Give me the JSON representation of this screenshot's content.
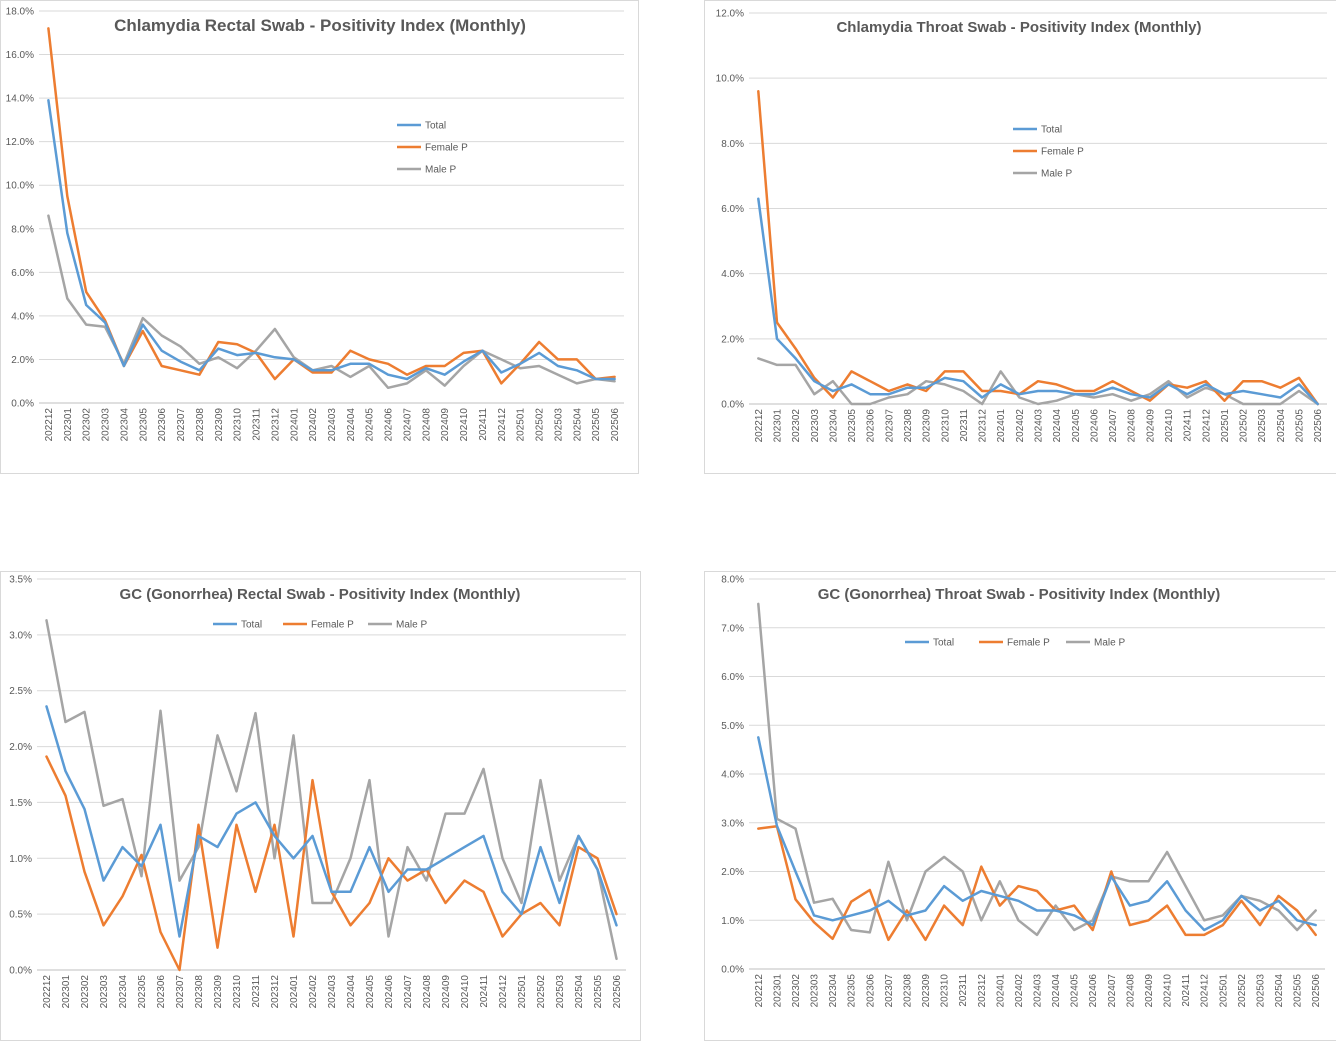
{
  "colors": {
    "Total": "#5b9bd5",
    "Female P": "#ed7d31",
    "Male P": "#a5a5a5"
  },
  "chart_data": [
    {
      "type": "line",
      "title": "Chlamydia   Rectal Swab - Positivity  Index (Monthly)",
      "ylim": [
        0,
        18
      ],
      "yticks": [
        "0.0%",
        "2.0%",
        "4.0%",
        "6.0%",
        "8.0%",
        "10.0%",
        "12.0%",
        "14.0%",
        "16.0%",
        "18.0%"
      ],
      "legend": "right",
      "x": [
        "202212",
        "202301",
        "202302",
        "202303",
        "202304",
        "202305",
        "202306",
        "202307",
        "202308",
        "202309",
        "202310",
        "202311",
        "202312",
        "202401",
        "202402",
        "202403",
        "202404",
        "202405",
        "202406",
        "202407",
        "202408",
        "202409",
        "202410",
        "202411",
        "202412",
        "202501",
        "202502",
        "202503",
        "202504",
        "202505",
        "202506"
      ],
      "series": [
        {
          "name": "Total",
          "values": [
            13.9,
            7.8,
            4.5,
            3.7,
            1.7,
            3.6,
            2.4,
            1.9,
            1.5,
            2.5,
            2.2,
            2.3,
            2.1,
            2.0,
            1.5,
            1.5,
            1.8,
            1.8,
            1.3,
            1.1,
            1.6,
            1.3,
            1.9,
            2.4,
            1.4,
            1.8,
            2.3,
            1.7,
            1.5,
            1.1,
            1.1
          ]
        },
        {
          "name": "Female P",
          "values": [
            17.2,
            9.5,
            5.1,
            3.8,
            1.7,
            3.3,
            1.7,
            1.5,
            1.3,
            2.8,
            2.7,
            2.3,
            1.1,
            2.0,
            1.4,
            1.4,
            2.4,
            2.0,
            1.8,
            1.3,
            1.7,
            1.7,
            2.3,
            2.4,
            0.9,
            1.8,
            2.8,
            2.0,
            2.0,
            1.1,
            1.2
          ]
        },
        {
          "name": "Male P",
          "values": [
            8.6,
            4.8,
            3.6,
            3.5,
            1.8,
            3.9,
            3.1,
            2.6,
            1.8,
            2.1,
            1.6,
            2.4,
            3.4,
            2.1,
            1.5,
            1.7,
            1.2,
            1.7,
            0.7,
            0.9,
            1.5,
            0.8,
            1.7,
            2.4,
            2.0,
            1.6,
            1.7,
            1.3,
            0.9,
            1.1,
            1.0
          ]
        }
      ]
    },
    {
      "type": "line",
      "title": "Chlamydia  Throat Swab - Positivity Index (Monthly)",
      "ylim": [
        0,
        12
      ],
      "yticks": [
        "0.0%",
        "2.0%",
        "4.0%",
        "6.0%",
        "8.0%",
        "10.0%",
        "12.0%"
      ],
      "legend": "right",
      "x": [
        "202212",
        "202301",
        "202302",
        "202303",
        "202304",
        "202305",
        "202306",
        "202307",
        "202308",
        "202309",
        "202310",
        "202311",
        "202312",
        "202401",
        "202402",
        "202403",
        "202404",
        "202405",
        "202406",
        "202407",
        "202408",
        "202409",
        "202410",
        "202411",
        "202412",
        "202501",
        "202502",
        "202503",
        "202504",
        "202505",
        "202506"
      ],
      "series": [
        {
          "name": "Total",
          "values": [
            6.3,
            2.0,
            1.4,
            0.7,
            0.4,
            0.6,
            0.3,
            0.3,
            0.5,
            0.5,
            0.8,
            0.7,
            0.2,
            0.6,
            0.3,
            0.4,
            0.4,
            0.3,
            0.3,
            0.5,
            0.3,
            0.2,
            0.6,
            0.3,
            0.6,
            0.3,
            0.4,
            0.3,
            0.2,
            0.6,
            0.0
          ]
        },
        {
          "name": "Female P",
          "values": [
            9.6,
            2.5,
            1.7,
            0.8,
            0.2,
            1.0,
            0.7,
            0.4,
            0.6,
            0.4,
            1.0,
            1.0,
            0.4,
            0.4,
            0.3,
            0.7,
            0.6,
            0.4,
            0.4,
            0.7,
            0.4,
            0.1,
            0.6,
            0.5,
            0.7,
            0.1,
            0.7,
            0.7,
            0.5,
            0.8,
            0.0
          ]
        },
        {
          "name": "Male P",
          "values": [
            1.4,
            1.2,
            1.2,
            0.3,
            0.7,
            0.0,
            0.0,
            0.2,
            0.3,
            0.7,
            0.6,
            0.4,
            0.0,
            1.0,
            0.2,
            0.0,
            0.1,
            0.3,
            0.2,
            0.3,
            0.1,
            0.3,
            0.7,
            0.2,
            0.5,
            0.3,
            0.0,
            0.0,
            0.0,
            0.4,
            0.0
          ]
        }
      ]
    },
    {
      "type": "line",
      "title": "GC (Gonorrhea) Rectal Swab - Positivity Index (Monthly)",
      "ylim": [
        0,
        3.5
      ],
      "yticks": [
        "0.0%",
        "0.5%",
        "1.0%",
        "1.5%",
        "2.0%",
        "2.5%",
        "3.0%",
        "3.5%"
      ],
      "legend": "top",
      "x": [
        "202212",
        "202301",
        "202302",
        "202303",
        "202304",
        "202305",
        "202306",
        "202307",
        "202308",
        "202309",
        "202310",
        "202311",
        "202312",
        "202401",
        "202402",
        "202403",
        "202404",
        "202405",
        "202406",
        "202407",
        "202408",
        "202409",
        "202410",
        "202411",
        "202412",
        "202501",
        "202502",
        "202503",
        "202504",
        "202505",
        "202506"
      ],
      "series": [
        {
          "name": "Total",
          "values": [
            2.36,
            1.78,
            1.44,
            0.8,
            1.1,
            0.93,
            1.3,
            0.3,
            1.2,
            1.1,
            1.4,
            1.5,
            1.2,
            1.0,
            1.2,
            0.7,
            0.7,
            1.1,
            0.7,
            0.9,
            0.9,
            1.0,
            1.1,
            1.2,
            0.7,
            0.5,
            1.1,
            0.6,
            1.2,
            0.9,
            0.4
          ]
        },
        {
          "name": "Female P",
          "values": [
            1.91,
            1.56,
            0.88,
            0.4,
            0.66,
            1.03,
            0.34,
            0.0,
            1.3,
            0.2,
            1.3,
            0.7,
            1.3,
            0.3,
            1.7,
            0.7,
            0.4,
            0.6,
            1.0,
            0.8,
            0.9,
            0.6,
            0.8,
            0.7,
            0.3,
            0.5,
            0.6,
            0.4,
            1.1,
            1.0,
            0.5
          ]
        },
        {
          "name": "Male P",
          "values": [
            3.13,
            2.22,
            2.31,
            1.47,
            1.53,
            0.84,
            2.32,
            0.8,
            1.1,
            2.1,
            1.6,
            2.3,
            1.0,
            2.1,
            0.6,
            0.6,
            1.0,
            1.7,
            0.3,
            1.1,
            0.8,
            1.4,
            1.4,
            1.8,
            1.0,
            0.6,
            1.7,
            0.8,
            1.2,
            0.9,
            0.1
          ]
        }
      ]
    },
    {
      "type": "line",
      "title": "GC (Gonorrhea) Throat Swab - Positivity Index (Monthly)",
      "ylim": [
        0,
        8
      ],
      "yticks": [
        "0.0%",
        "1.0%",
        "2.0%",
        "3.0%",
        "4.0%",
        "5.0%",
        "6.0%",
        "7.0%",
        "8.0%"
      ],
      "legend": "top",
      "x": [
        "202212",
        "202301",
        "202302",
        "202303",
        "202304",
        "202305",
        "202306",
        "202307",
        "202308",
        "202309",
        "202310",
        "202311",
        "202312",
        "202401",
        "202402",
        "202403",
        "202404",
        "202405",
        "202406",
        "202407",
        "202408",
        "202409",
        "202410",
        "202411",
        "202412",
        "202501",
        "202502",
        "202503",
        "202504",
        "202505",
        "202506"
      ],
      "series": [
        {
          "name": "Total",
          "values": [
            4.75,
            2.94,
            2.0,
            1.1,
            1.0,
            1.1,
            1.2,
            1.4,
            1.1,
            1.2,
            1.7,
            1.4,
            1.6,
            1.5,
            1.4,
            1.2,
            1.2,
            1.1,
            0.9,
            1.9,
            1.3,
            1.4,
            1.8,
            1.2,
            0.8,
            1.0,
            1.5,
            1.2,
            1.4,
            1.0,
            0.9
          ]
        },
        {
          "name": "Female P",
          "values": [
            2.88,
            2.93,
            1.43,
            0.96,
            0.62,
            1.38,
            1.62,
            0.6,
            1.2,
            0.6,
            1.3,
            0.9,
            2.1,
            1.3,
            1.7,
            1.6,
            1.2,
            1.3,
            0.8,
            2.0,
            0.9,
            1.0,
            1.3,
            0.7,
            0.7,
            0.9,
            1.4,
            0.9,
            1.5,
            1.2,
            0.7
          ]
        },
        {
          "name": "Male P",
          "values": [
            7.49,
            3.08,
            2.88,
            1.36,
            1.44,
            0.8,
            0.75,
            2.2,
            1.0,
            2.0,
            2.3,
            2.0,
            1.0,
            1.8,
            1.0,
            0.7,
            1.3,
            0.8,
            1.0,
            1.9,
            1.8,
            1.8,
            2.4,
            1.7,
            1.0,
            1.1,
            1.5,
            1.4,
            1.2,
            0.8,
            1.2
          ]
        }
      ]
    }
  ]
}
